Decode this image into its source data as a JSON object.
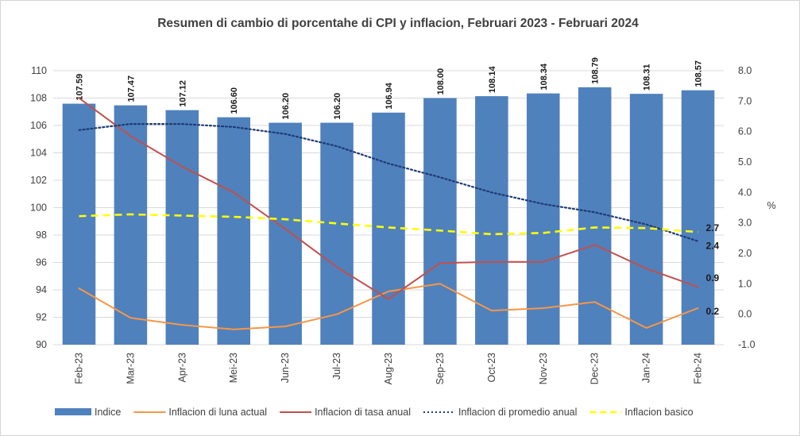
{
  "chart_data": {
    "type": "bar",
    "title": "Resumen di cambio di porcentahe di CPI y inflacion, Februari 2023 - Februari 2024",
    "categories": [
      "Feb-23",
      "Mar-23",
      "Apr-23",
      "Mei-23",
      "Jun-23",
      "Jul-23",
      "Aug-23",
      "Sep-23",
      "Oct-23",
      "Nov-23",
      "Dec-23",
      "Jan-24",
      "Feb-24"
    ],
    "y_left": {
      "ylim": [
        90,
        110
      ],
      "ticks": [
        "90",
        "92",
        "94",
        "96",
        "98",
        "100",
        "102",
        "104",
        "106",
        "108",
        "110"
      ]
    },
    "y_right": {
      "ylim": [
        -1.0,
        8.0
      ],
      "label": "%",
      "ticks": [
        "-1.0",
        "0.0",
        "1.0",
        "2.0",
        "3.0",
        "4.0",
        "5.0",
        "6.0",
        "7.0",
        "8.0"
      ]
    },
    "grid": true,
    "legend_position": "bottom",
    "series": [
      {
        "name": "Indice",
        "type": "bar",
        "axis": "left",
        "color": "#4f81bd",
        "values": [
          107.59,
          107.47,
          107.12,
          106.6,
          106.2,
          106.2,
          106.94,
          108.0,
          108.14,
          108.34,
          108.79,
          108.31,
          108.57
        ],
        "labels": [
          "107.59",
          "107.47",
          "107.12",
          "106.60",
          "106.20",
          "106.20",
          "106.94",
          "108.00",
          "108.14",
          "108.34",
          "108.79",
          "108.31",
          "108.57"
        ]
      },
      {
        "name": "Inflacion di luna actual",
        "type": "line",
        "axis": "right",
        "color": "#f79646",
        "values": [
          0.85,
          -0.12,
          -0.35,
          -0.5,
          -0.4,
          0.0,
          0.75,
          1.0,
          0.12,
          0.2,
          0.4,
          -0.45,
          0.2
        ],
        "end_label": "0.2"
      },
      {
        "name": "Inflacion di tasa anual",
        "type": "line",
        "axis": "right",
        "color": "#c0504d",
        "values": [
          7.1,
          5.85,
          4.85,
          4.0,
          2.8,
          1.55,
          0.5,
          1.68,
          1.72,
          1.72,
          2.28,
          1.5,
          0.9
        ],
        "end_label": "0.9"
      },
      {
        "name": "Inflacion di promedio anual",
        "type": "line",
        "style": "dotted",
        "axis": "right",
        "color": "#1f3b73",
        "values": [
          6.05,
          6.25,
          6.25,
          6.15,
          5.92,
          5.52,
          4.95,
          4.5,
          4.0,
          3.62,
          3.35,
          2.95,
          2.4
        ],
        "end_label": "2.4"
      },
      {
        "name": "Inflacion basico",
        "type": "line",
        "style": "dashed",
        "axis": "right",
        "color": "#ffff00",
        "values": [
          3.22,
          3.28,
          3.24,
          3.2,
          3.12,
          2.98,
          2.85,
          2.75,
          2.63,
          2.67,
          2.85,
          2.83,
          2.7
        ],
        "end_label": "2.7"
      }
    ]
  }
}
